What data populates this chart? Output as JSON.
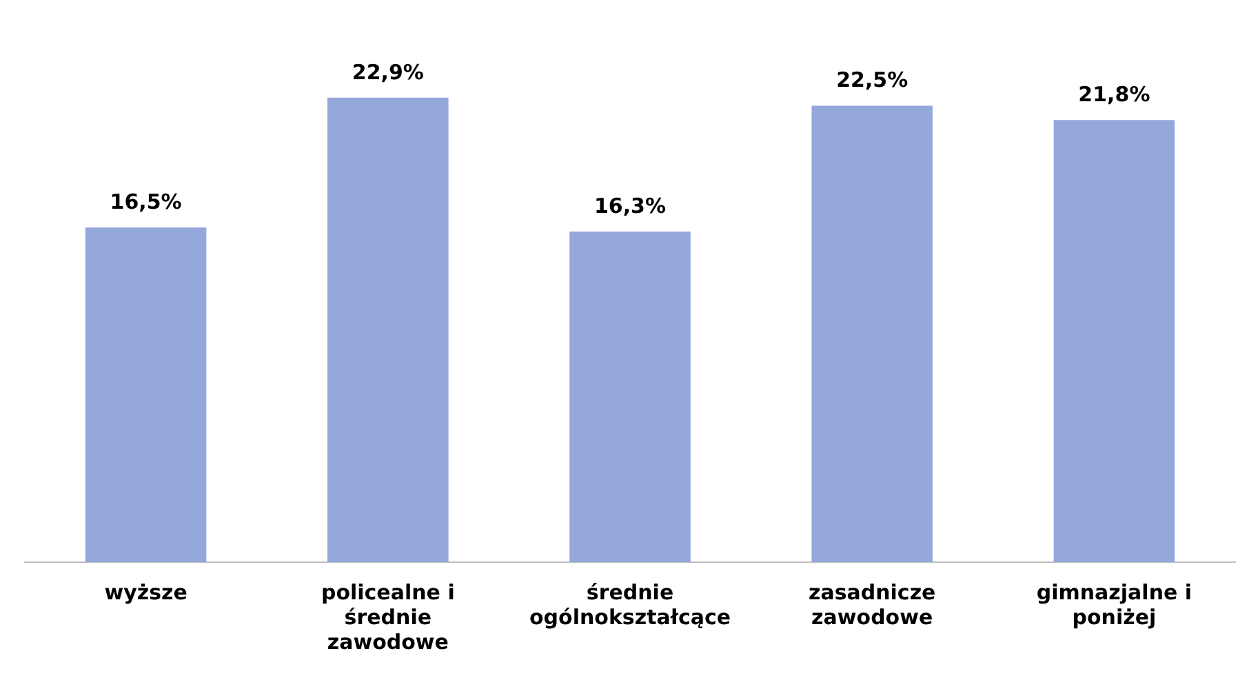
{
  "chart_data": {
    "type": "bar",
    "categories": [
      "wyższe",
      "policealne i średnie zawodowe",
      "średnie ogólnokształcące",
      "zasadnicze zawodowe",
      "gimnazjalne i poniżej"
    ],
    "values": [
      16.5,
      22.9,
      16.3,
      22.5,
      21.8
    ],
    "value_labels": [
      "16,5%",
      "22,9%",
      "16,3%",
      "22,5%",
      "21,8%"
    ],
    "color": "#95a8dc",
    "grid": false,
    "legend": false
  }
}
